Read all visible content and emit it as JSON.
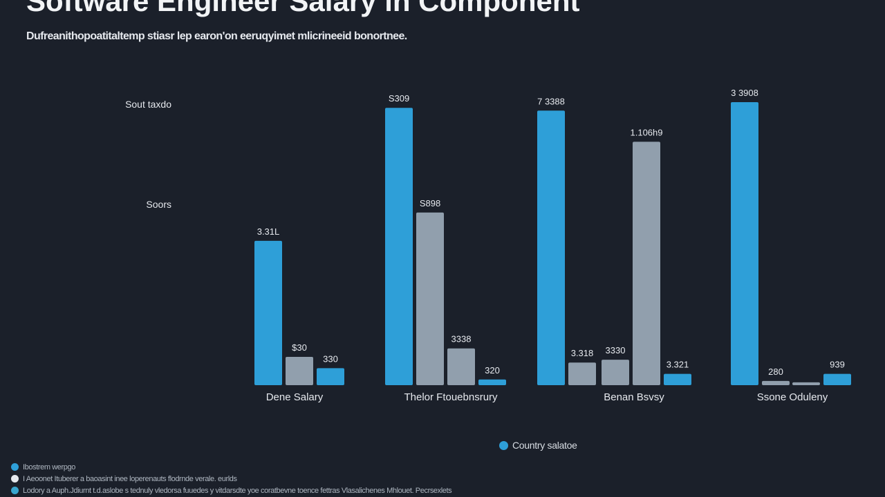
{
  "chart_data": {
    "type": "bar",
    "title": "Software Engineer Salary in Component",
    "subtitle": "Dufreanithopoatitaltemp stiasr lep earon'on eeruqyimet mlicrineeid bonortnee.",
    "y_tick_labels": [
      "Sout taxdo",
      "Soors"
    ],
    "categories": [
      "Dene Salary",
      "Thelor Ftouebnsrury",
      "Benan Bsvsy",
      "Ssone Oduleny"
    ],
    "groups": [
      {
        "category": "Dene Salary",
        "bars": [
          {
            "value": 51,
            "label": "3.31L",
            "color": "#2e9fd8"
          },
          {
            "value": 10,
            "label": "$30",
            "color": "#919fad"
          },
          {
            "value": 6,
            "label": "330",
            "color": "#2e9fd8"
          }
        ]
      },
      {
        "category": "Thelor Ftouebnsrury",
        "bars": [
          {
            "value": 98,
            "label": "S309",
            "color": "#2e9fd8"
          },
          {
            "value": 61,
            "label": "S898",
            "color": "#919fad"
          },
          {
            "value": 13,
            "label": "3338",
            "color": "#919fad"
          },
          {
            "value": 2,
            "label": "320",
            "color": "#2e9fd8"
          }
        ]
      },
      {
        "category": "Benan Bsvsy",
        "bars": [
          {
            "value": 97,
            "label": "7 3388",
            "color": "#2e9fd8"
          },
          {
            "value": 8,
            "label": "3.318",
            "color": "#919fad"
          },
          {
            "value": 9,
            "label": "3330",
            "color": "#919fad"
          },
          {
            "value": 86,
            "label": "1.106h9",
            "color": "#919fad"
          },
          {
            "value": 4,
            "label": "3.321",
            "color": "#2e9fd8"
          }
        ]
      },
      {
        "category": "Ssone Oduleny",
        "bars": [
          {
            "value": 100,
            "label": "3 3908",
            "color": "#2e9fd8"
          },
          {
            "value": 1.5,
            "label": "280",
            "color": "#919fad"
          },
          {
            "value": 1,
            "label": "",
            "color": "#919fad"
          },
          {
            "value": 4,
            "label": "939",
            "color": "#2e9fd8"
          }
        ]
      }
    ],
    "ylim": [
      0,
      100
    ],
    "grid": false,
    "legend": {
      "position": "bottom-center",
      "entries": [
        {
          "name": "Country salatoe",
          "color": "#2e9fd8"
        }
      ]
    }
  },
  "notes": [
    {
      "text": "Ibostrem werpgo",
      "color": "#2e9fd8"
    },
    {
      "text": "I Aeoonet Ituberer a baoasint inee loperenauts flodrnde verale. eurlds",
      "color": "#e6e9ee"
    },
    {
      "text": "Lodory a Auph.Jdiurnt t.d.aslobe s tednuly vledorsa fuuedes y vitdarsdte yoe coratbevne toence fettras Vlasalichenes Mhlouet. Pecrsexlets",
      "color": "#3aa6cf"
    }
  ]
}
